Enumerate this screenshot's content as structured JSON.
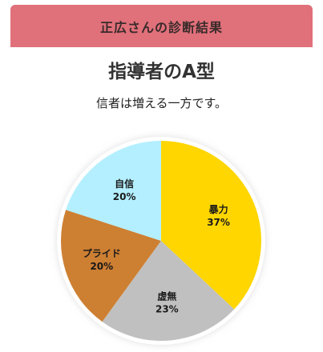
{
  "header": {
    "title": "正広さんの診断結果"
  },
  "result": {
    "title": "指導者のA型",
    "subtitle": "信者は増える一方です。"
  },
  "chart_data": {
    "type": "pie",
    "title": "",
    "slices": [
      {
        "label": "暴力",
        "value": 37,
        "color": "#ffd600"
      },
      {
        "label": "虚無",
        "value": 23,
        "color": "#c0c0c0"
      },
      {
        "label": "プライド",
        "value": 20,
        "color": "#cd7f32"
      },
      {
        "label": "自信",
        "value": 20,
        "color": "#b3efff"
      }
    ]
  },
  "colors": {
    "header_bg": "#e0707a"
  }
}
